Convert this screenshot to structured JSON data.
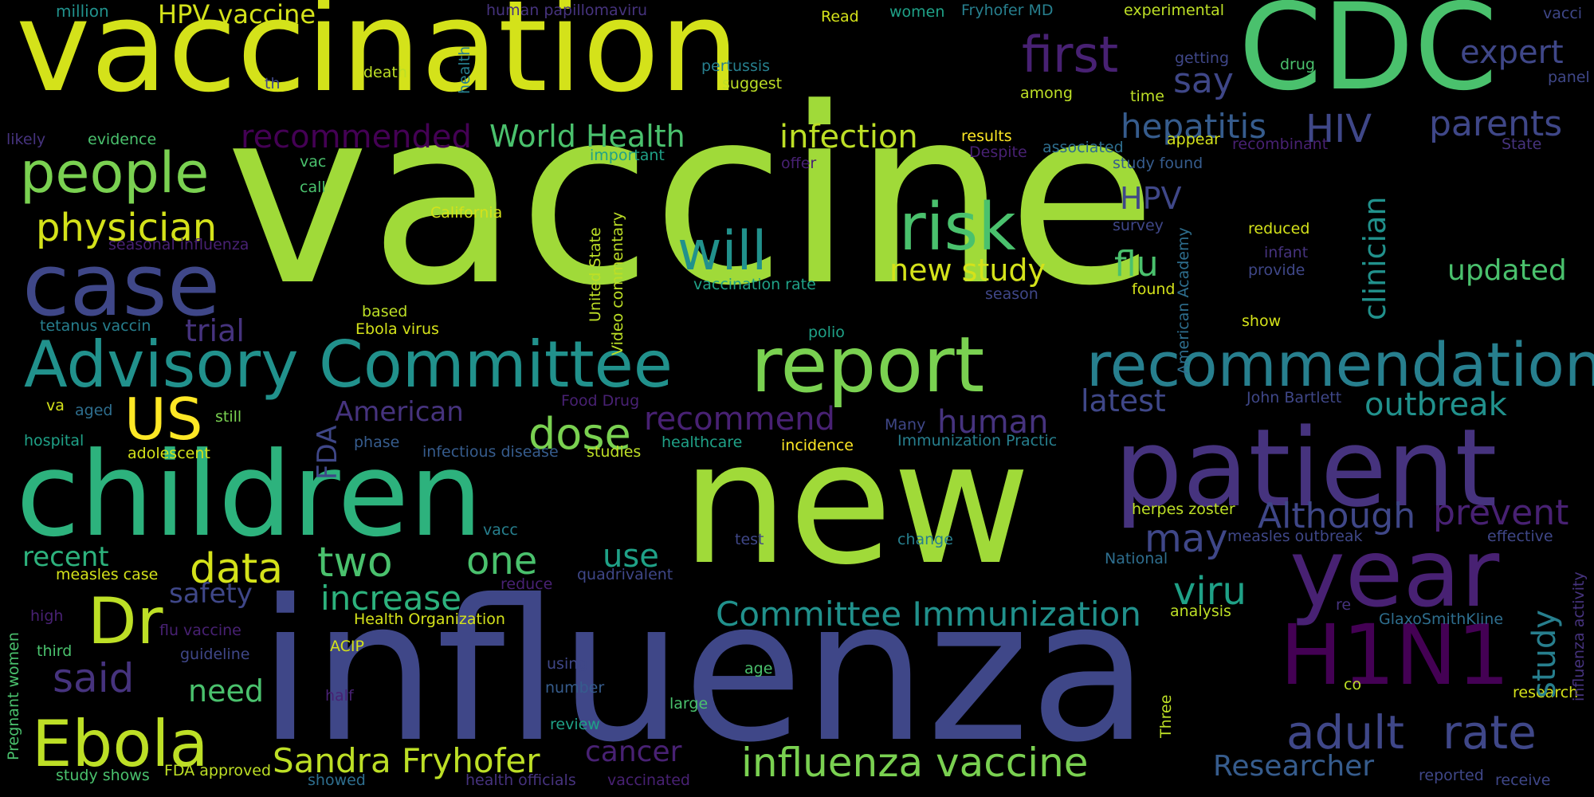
{
  "words": {
    "vaccine": "vaccine",
    "vaccination": "vaccination",
    "cdc": "CDC",
    "influenza": "influenza",
    "new": "new",
    "children": "children",
    "patient": "patient",
    "year": "year",
    "h1n1": "H1N1",
    "advisory_committee": "Advisory Committee",
    "report": "report",
    "recommendation": "recommendation",
    "case": "case",
    "people": "people",
    "physician": "physician",
    "us": "US",
    "ebola": "Ebola",
    "dr": "Dr",
    "first": "first",
    "risk": "risk",
    "will": "will",
    "adult": "adult",
    "rate": "rate",
    "influenza_vaccine": "influenza vaccine",
    "sandra_fryhofer": "Sandra Fryhofer",
    "committee_immunization": "Committee Immunization",
    "data": "data",
    "two": "two",
    "one": "one",
    "dose": "dose",
    "recommended": "recommended",
    "world_health": "World Health",
    "infection": "infection",
    "hepatitis": "hepatitis",
    "hiv": "HIV",
    "parents": "parents",
    "say": "say",
    "expert": "expert",
    "hpv_vaccine": "HPV vaccine",
    "hpv": "HPV",
    "new_study": "new study",
    "flu": "flu",
    "updated": "updated",
    "clinician": "clinician",
    "outbreak": "outbreak",
    "latest": "latest",
    "recommend": "recommend",
    "human": "human",
    "american": "American",
    "trial": "trial",
    "fda": "FDA",
    "although": "Although",
    "prevent": "prevent",
    "may": "may",
    "viru": "viru",
    "study": "study",
    "researcher": "Researcher",
    "cancer": "cancer",
    "need": "need",
    "said": "said",
    "safety": "safety",
    "increase": "increase",
    "recent": "recent",
    "use": "use",
    "million": "million",
    "human_papillomaviru": "human papillomaviru",
    "read": "Read",
    "women": "women",
    "fryhofer_md": "Fryhofer MD",
    "experimental": "experimental",
    "vacci": "vacci",
    "panel": "panel",
    "getting": "getting",
    "drug": "drug",
    "pertussis": "pertussis",
    "suggest": "suggest",
    "among": "among",
    "time": "time",
    "health": "health",
    "death": "death",
    "th": "th",
    "likely": "likely",
    "evidence": "evidence",
    "important": "important",
    "offer": "offer",
    "despite": "Despite",
    "associated": "associated",
    "results": "results",
    "appear": "appear",
    "recombinant": "recombinant",
    "state": "State",
    "study_found": "study found",
    "vac": "vac",
    "call": "call",
    "california": "California",
    "seasonal_influenza": "seasonal influenza",
    "survey": "survey",
    "reduced": "reduced",
    "infant": "infant",
    "provide": "provide",
    "united_state": "United State",
    "video_commentary": "Video commentary",
    "vaccination_rate": "vaccination rate",
    "season": "season",
    "found": "found",
    "american_academy": "American Academy",
    "based": "based",
    "tetanus_vaccin": "tetanus vaccin",
    "ebola_virus": "Ebola virus",
    "polio": "polio",
    "show": "show",
    "va": "va",
    "aged": "aged",
    "still": "still",
    "food_drug": "Food Drug",
    "john_bartlett": "John Bartlett",
    "hospital": "hospital",
    "adolescent": "adolescent",
    "phase": "phase",
    "infectious_disease": "infectious disease",
    "studies": "studies",
    "healthcare": "healthcare",
    "incidence": "incidence",
    "many": "Many",
    "immunization_practic": "Immunization Practic",
    "herpes_zoster": "herpes zoster",
    "measles_outbreak": "measles outbreak",
    "effective": "effective",
    "vacc": "vacc",
    "test": "test",
    "change": "change",
    "national": "National",
    "high": "high",
    "measles_case": "measles case",
    "reduce": "reduce",
    "quadrivalent": "quadrivalent",
    "health_organization": "Health Organization",
    "analysis": "analysis",
    "re": "re",
    "glaxosmithkline": "GlaxoSmithKline",
    "influenza_activity": "influenza activity",
    "flu_vaccine": "flu vaccine",
    "third": "third",
    "guideline": "guideline",
    "acip": "ACIP",
    "using": "using",
    "age": "age",
    "co": "co",
    "pregnant_women": "Pregnant women",
    "half": "half",
    "number": "number",
    "large": "large",
    "three": "Three",
    "research": "research",
    "review": "review",
    "study_shows": "study shows",
    "fda_approved": "FDA approved",
    "showed": "showed",
    "health_officials": "health officials",
    "vaccinated": "vaccinated",
    "reported": "reported",
    "receive": "receive"
  }
}
